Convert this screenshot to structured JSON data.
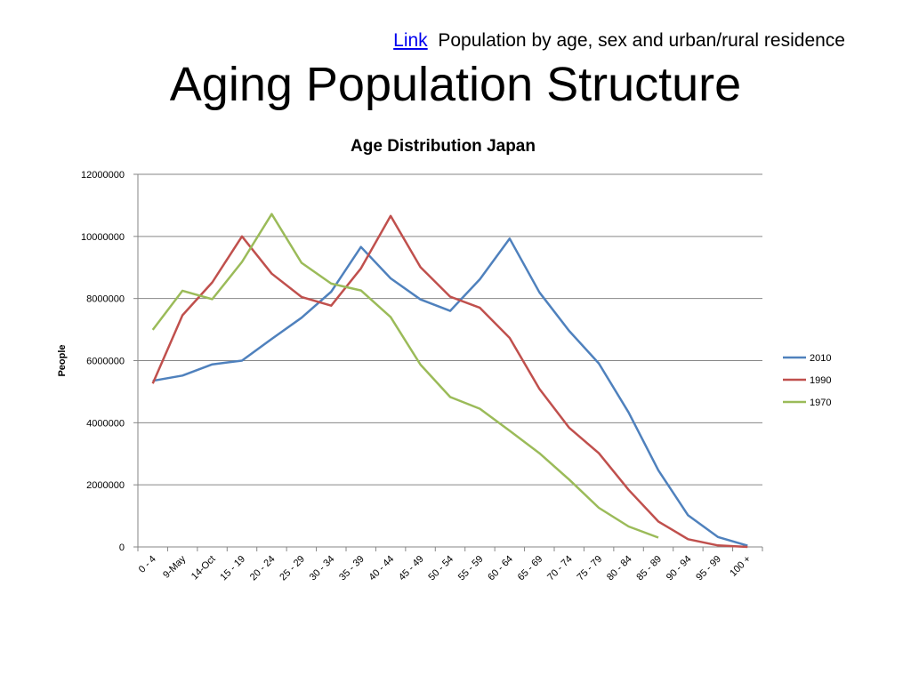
{
  "header": {
    "link_label": "Link",
    "source_text": "Population by age, sex and urban/rural residence"
  },
  "slide_title": "Aging Population Structure",
  "colors": {
    "series_2010": "#4F81BD",
    "series_1990": "#C0504D",
    "series_1970": "#9BBB59",
    "gridline": "#868686"
  },
  "chart_data": {
    "type": "line",
    "title": "Age Distribution Japan",
    "xlabel": "",
    "ylabel": "People",
    "ylim": [
      0,
      12000000
    ],
    "yticks": [
      0,
      2000000,
      4000000,
      6000000,
      8000000,
      10000000,
      12000000
    ],
    "grid": true,
    "legend_position": "right",
    "categories": [
      "0 - 4",
      "9-May",
      "14-Oct",
      "15 - 19",
      "20 - 24",
      "25 - 29",
      "30 - 34",
      "35 - 39",
      "40 - 44",
      "45 - 49",
      "50 - 54",
      "55 - 59",
      "60 - 64",
      "65 - 69",
      "70 - 74",
      "75 - 79",
      "80 - 84",
      "85 - 89",
      "90 - 94",
      "95 - 99",
      "100 +"
    ],
    "series": [
      {
        "name": "2010",
        "values": [
          5350000,
          5520000,
          5880000,
          6000000,
          6700000,
          7380000,
          8220000,
          9660000,
          8650000,
          7970000,
          7600000,
          8620000,
          9930000,
          8200000,
          6960000,
          5910000,
          4330000,
          2470000,
          1020000,
          320000,
          40000
        ]
      },
      {
        "name": "1990",
        "values": [
          5260000,
          7460000,
          8520000,
          10000000,
          8800000,
          8050000,
          7770000,
          8970000,
          10660000,
          9010000,
          8060000,
          7700000,
          6730000,
          5090000,
          3840000,
          3020000,
          1840000,
          820000,
          250000,
          50000,
          0
        ]
      },
      {
        "name": "1970",
        "values": [
          6990000,
          8250000,
          7980000,
          9180000,
          10720000,
          9150000,
          8480000,
          8260000,
          7400000,
          5870000,
          4830000,
          4450000,
          3740000,
          3020000,
          2170000,
          1260000,
          660000,
          300000,
          null,
          null,
          null
        ]
      }
    ]
  }
}
